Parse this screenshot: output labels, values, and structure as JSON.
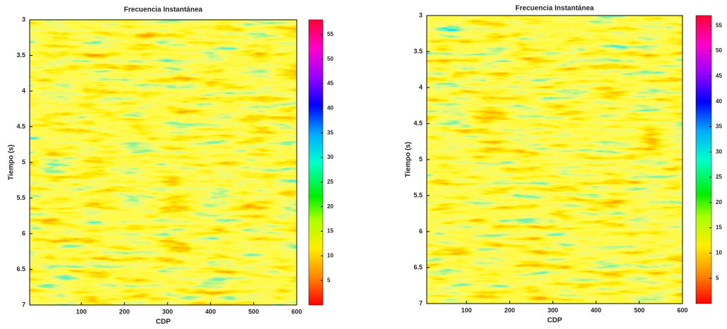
{
  "chart_data": [
    {
      "type": "heatmap",
      "title": "Frecuencia Instantánea",
      "xlabel": "CDP",
      "ylabel": "Tiempo (s)",
      "xlim": [
        -20,
        600
      ],
      "xticks": [
        100,
        200,
        300,
        400,
        500,
        600
      ],
      "ylim": [
        3,
        7
      ],
      "yticks": [
        3,
        3.5,
        4,
        4.5,
        5,
        5.5,
        6,
        6.5,
        7
      ],
      "clim": [
        0,
        58
      ],
      "cticks": [
        5,
        10,
        15,
        20,
        25,
        30,
        35,
        40,
        45,
        50,
        55
      ],
      "y_inverted": true
    },
    {
      "type": "heatmap",
      "title": "Frecuencia Instantánea",
      "xlabel": "CDP",
      "ylabel": "Tiempo (s)",
      "xlim": [
        8,
        600
      ],
      "xticks": [
        100,
        200,
        300,
        400,
        500,
        600
      ],
      "ylim": [
        3,
        7
      ],
      "yticks": [
        3,
        3.5,
        4,
        4.5,
        5,
        5.5,
        6,
        6.5,
        7
      ],
      "clim": [
        0,
        57
      ],
      "cticks": [
        5,
        10,
        15,
        20,
        25,
        30,
        35,
        40,
        45,
        50,
        55
      ],
      "y_inverted": true
    }
  ]
}
